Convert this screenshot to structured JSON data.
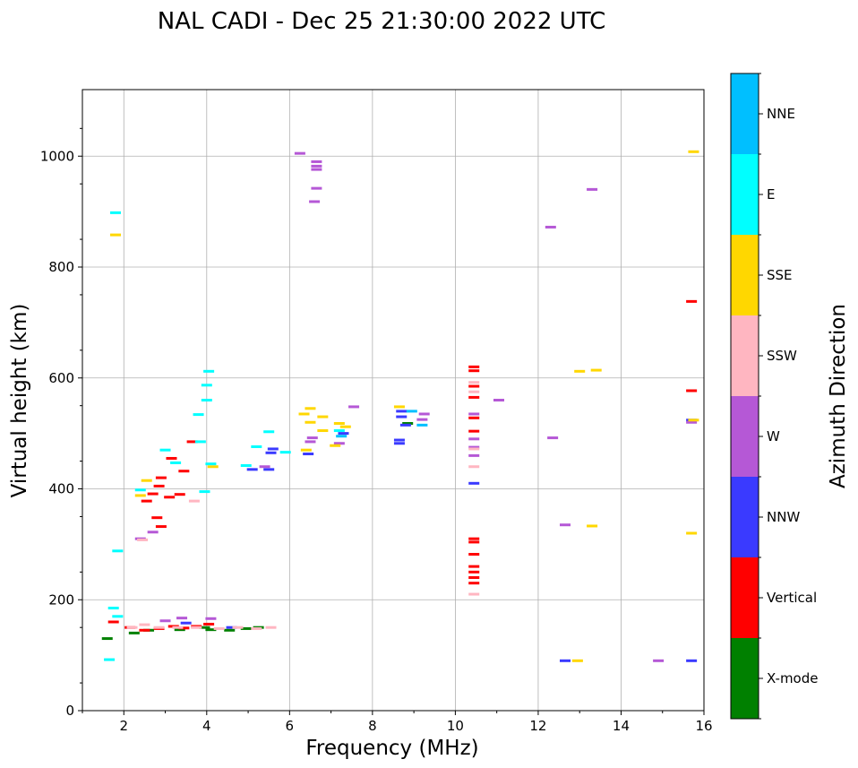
{
  "chart_data": {
    "type": "scatter",
    "title": "NAL CADI - Dec 25 21:30:00 2022 UTC",
    "xlabel": "Frequency (MHz)",
    "ylabel": "Virtual height (km)",
    "xlim": [
      1,
      16
    ],
    "ylim": [
      0,
      1120
    ],
    "xticks": [
      2,
      4,
      6,
      8,
      10,
      12,
      14,
      16
    ],
    "yticks": [
      0,
      200,
      400,
      600,
      800,
      1000
    ],
    "grid": true,
    "colorbar": {
      "label": "Azimuth Direction",
      "categories": [
        {
          "name": "X-mode",
          "color": "#008000"
        },
        {
          "name": "Vertical",
          "color": "#ff0000"
        },
        {
          "name": "NNW",
          "color": "#3a3aff"
        },
        {
          "name": "W",
          "color": "#b558d6"
        },
        {
          "name": "SSW",
          "color": "#ffb6c1"
        },
        {
          "name": "SSE",
          "color": "#ffd700"
        },
        {
          "name": "E",
          "color": "#00ffff"
        },
        {
          "name": "NNE",
          "color": "#00bfff"
        }
      ]
    },
    "series": [
      {
        "name": "X-mode",
        "points": [
          [
            1.6,
            130
          ],
          [
            2.25,
            140
          ],
          [
            2.6,
            145
          ],
          [
            3.35,
            146
          ],
          [
            3.95,
            150
          ],
          [
            4.1,
            146
          ],
          [
            4.55,
            145
          ],
          [
            4.95,
            148
          ],
          [
            5.25,
            150
          ],
          [
            8.85,
            518
          ]
        ]
      },
      {
        "name": "Vertical",
        "points": [
          [
            1.75,
            160
          ],
          [
            2.15,
            150
          ],
          [
            2.5,
            145
          ],
          [
            2.85,
            148
          ],
          [
            3.2,
            152
          ],
          [
            3.45,
            149
          ],
          [
            3.75,
            152
          ],
          [
            4.05,
            156
          ],
          [
            2.55,
            378
          ],
          [
            2.7,
            391
          ],
          [
            2.8,
            348
          ],
          [
            2.9,
            332
          ],
          [
            2.85,
            405
          ],
          [
            2.9,
            420
          ],
          [
            3.1,
            385
          ],
          [
            3.15,
            455
          ],
          [
            3.35,
            390
          ],
          [
            3.45,
            432
          ],
          [
            3.65,
            485
          ],
          [
            10.45,
            230
          ],
          [
            10.45,
            240
          ],
          [
            10.45,
            250
          ],
          [
            10.45,
            260
          ],
          [
            10.45,
            282
          ],
          [
            10.45,
            304
          ],
          [
            10.45,
            310
          ],
          [
            10.45,
            504
          ],
          [
            10.45,
            528
          ],
          [
            10.45,
            565
          ],
          [
            10.45,
            585
          ],
          [
            10.45,
            613
          ],
          [
            10.45,
            620
          ],
          [
            15.7,
            577
          ],
          [
            15.7,
            738
          ]
        ]
      },
      {
        "name": "NNW",
        "points": [
          [
            3.5,
            158
          ],
          [
            4.6,
            150
          ],
          [
            5.1,
            435
          ],
          [
            5.5,
            435
          ],
          [
            5.55,
            465
          ],
          [
            5.6,
            472
          ],
          [
            6.45,
            463
          ],
          [
            7.3,
            500
          ],
          [
            8.65,
            482
          ],
          [
            8.65,
            488
          ],
          [
            8.7,
            530
          ],
          [
            8.7,
            540
          ],
          [
            8.8,
            515
          ],
          [
            10.45,
            410
          ],
          [
            12.65,
            90
          ],
          [
            15.7,
            90
          ],
          [
            15.7,
            524
          ]
        ]
      },
      {
        "name": "W",
        "points": [
          [
            2.4,
            310
          ],
          [
            2.7,
            322
          ],
          [
            3.0,
            162
          ],
          [
            3.4,
            167
          ],
          [
            4.1,
            166
          ],
          [
            5.4,
            440
          ],
          [
            6.25,
            1005
          ],
          [
            6.6,
            918
          ],
          [
            6.65,
            942
          ],
          [
            6.65,
            976
          ],
          [
            6.65,
            982
          ],
          [
            6.65,
            990
          ],
          [
            6.5,
            485
          ],
          [
            6.55,
            492
          ],
          [
            7.2,
            482
          ],
          [
            7.55,
            548
          ],
          [
            9.2,
            525
          ],
          [
            9.25,
            535
          ],
          [
            10.45,
            460
          ],
          [
            10.45,
            475
          ],
          [
            10.45,
            490
          ],
          [
            10.45,
            535
          ],
          [
            11.05,
            560
          ],
          [
            12.3,
            872
          ],
          [
            12.35,
            492
          ],
          [
            12.65,
            335
          ],
          [
            13.3,
            940
          ],
          [
            14.9,
            90
          ],
          [
            15.7,
            520
          ]
        ]
      },
      {
        "name": "SSW",
        "points": [
          [
            2.2,
            150
          ],
          [
            2.5,
            155
          ],
          [
            2.85,
            150
          ],
          [
            3.3,
            150
          ],
          [
            3.75,
            150
          ],
          [
            4.3,
            148
          ],
          [
            4.75,
            150
          ],
          [
            5.2,
            148
          ],
          [
            5.55,
            150
          ],
          [
            2.45,
            308
          ],
          [
            3.7,
            378
          ],
          [
            10.45,
            210
          ],
          [
            10.45,
            440
          ],
          [
            10.45,
            472
          ],
          [
            10.45,
            575
          ],
          [
            10.45,
            592
          ]
        ]
      },
      {
        "name": "SSE",
        "points": [
          [
            1.8,
            858
          ],
          [
            2.4,
            388
          ],
          [
            2.55,
            415
          ],
          [
            4.15,
            440
          ],
          [
            6.4,
            470
          ],
          [
            6.35,
            535
          ],
          [
            6.5,
            520
          ],
          [
            6.5,
            545
          ],
          [
            6.8,
            505
          ],
          [
            6.8,
            530
          ],
          [
            7.1,
            478
          ],
          [
            7.2,
            518
          ],
          [
            7.35,
            512
          ],
          [
            8.65,
            548
          ],
          [
            12.95,
            90
          ],
          [
            13.0,
            612
          ],
          [
            13.4,
            614
          ],
          [
            13.3,
            333
          ],
          [
            15.7,
            320
          ],
          [
            15.75,
            524
          ],
          [
            15.75,
            1008
          ]
        ]
      },
      {
        "name": "E",
        "points": [
          [
            1.65,
            92
          ],
          [
            1.75,
            185
          ],
          [
            1.8,
            898
          ],
          [
            1.85,
            170
          ],
          [
            1.85,
            288
          ],
          [
            2.4,
            398
          ],
          [
            3.0,
            470
          ],
          [
            3.25,
            447
          ],
          [
            3.85,
            485
          ],
          [
            3.8,
            534
          ],
          [
            3.95,
            395
          ],
          [
            4.0,
            560
          ],
          [
            4.0,
            587
          ],
          [
            4.05,
            612
          ],
          [
            4.1,
            445
          ],
          [
            4.95,
            442
          ],
          [
            5.2,
            476
          ],
          [
            5.5,
            503
          ],
          [
            5.9,
            466
          ],
          [
            7.2,
            505
          ]
        ]
      },
      {
        "name": "NNE",
        "points": [
          [
            8.95,
            540
          ],
          [
            9.2,
            515
          ],
          [
            7.25,
            495
          ]
        ]
      }
    ]
  }
}
